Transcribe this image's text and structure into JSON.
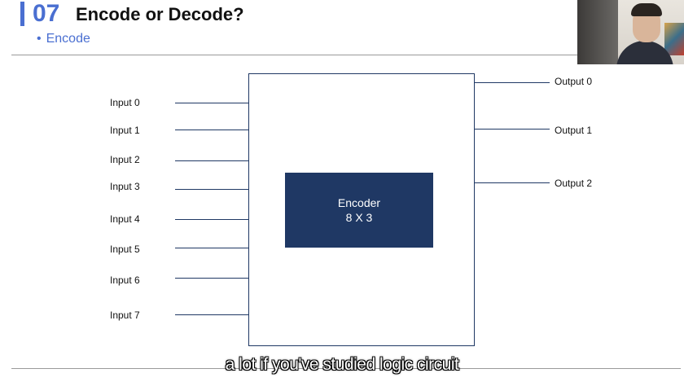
{
  "header": {
    "number": "07",
    "title": "Encode or Decode?",
    "subtitle_bullet": "•",
    "subtitle": "Encode"
  },
  "diagram": {
    "block_name": "Encoder",
    "block_size": "8 X 3",
    "inputs": [
      "Input 0",
      "Input 1",
      "Input 2",
      "Input 3",
      "Input 4",
      "Input 5",
      "Input 6",
      "Input 7"
    ],
    "outputs": [
      "Output 0",
      "Output 1",
      "Output 2"
    ]
  },
  "caption": "a lot if you've studied logic circuit",
  "colors": {
    "accent": "#4a6fd1",
    "block_fill": "#1f3864"
  }
}
